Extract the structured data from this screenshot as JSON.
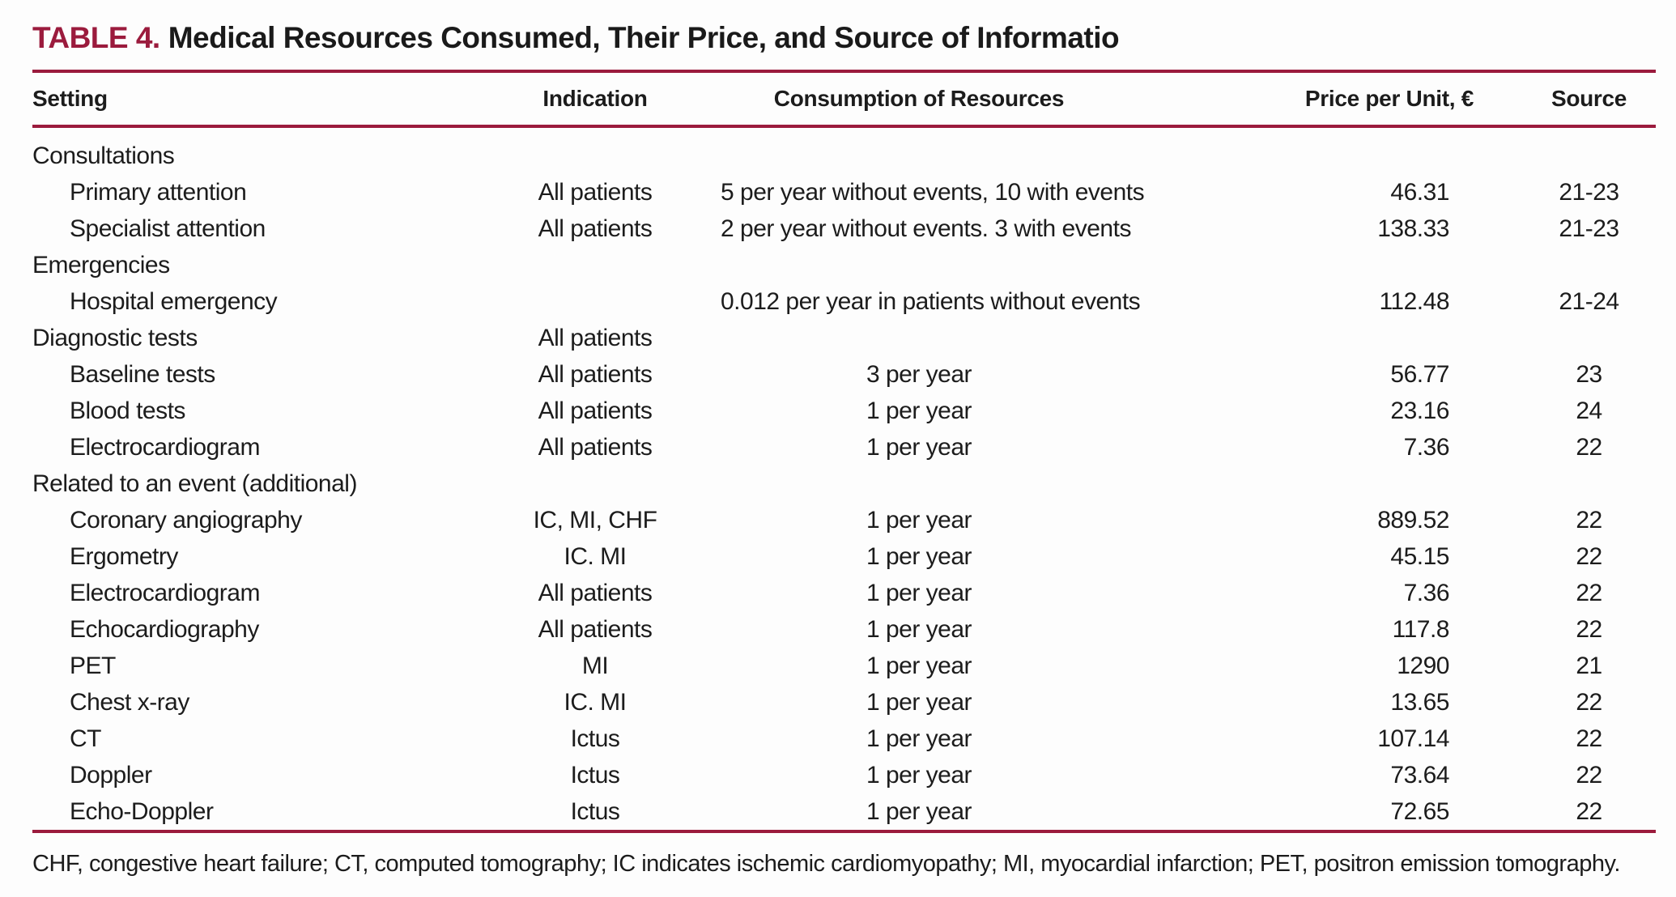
{
  "colors": {
    "accent": "#9b1b3d"
  },
  "title": {
    "label": "TABLE 4.",
    "text": "Medical Resources Consumed, Their Price, and Source of Informatio"
  },
  "table": {
    "columns": [
      "Setting",
      "Indication",
      "Consumption of Resources",
      "Price per Unit, €",
      "Source"
    ],
    "rows": [
      {
        "setting": "Consultations",
        "indent": false,
        "indication": "",
        "consumption": "",
        "price": "",
        "source": ""
      },
      {
        "setting": "Primary attention",
        "indent": true,
        "indication": "All patients",
        "consumption": "5 per year without events, 10 with events",
        "price": "46.31",
        "source": "21-23"
      },
      {
        "setting": "Specialist attention",
        "indent": true,
        "indication": "All patients",
        "consumption": "2 per year without events. 3 with events",
        "price": "138.33",
        "source": "21-23"
      },
      {
        "setting": "Emergencies",
        "indent": false,
        "indication": "",
        "consumption": "",
        "price": "",
        "source": ""
      },
      {
        "setting": "Hospital emergency",
        "indent": true,
        "indication": "",
        "consumption": "0.012 per year in patients without events",
        "price": "112.48",
        "source": "21-24"
      },
      {
        "setting": "Diagnostic tests",
        "indent": false,
        "indication": "All patients",
        "consumption": "",
        "price": "",
        "source": ""
      },
      {
        "setting": "Baseline tests",
        "indent": true,
        "indication": "All patients",
        "consumption": "3 per year",
        "price": "56.77",
        "source": "23"
      },
      {
        "setting": "Blood tests",
        "indent": true,
        "indication": "All patients",
        "consumption": "1 per year",
        "price": "23.16",
        "source": "24"
      },
      {
        "setting": "Electrocardiogram",
        "indent": true,
        "indication": "All patients",
        "consumption": "1 per year",
        "price": "7.36",
        "source": "22"
      },
      {
        "setting": "Related to an event (additional)",
        "indent": false,
        "indication": "",
        "consumption": "",
        "price": "",
        "source": ""
      },
      {
        "setting": "Coronary angiography",
        "indent": true,
        "indication": "IC, MI, CHF",
        "consumption": "1 per year",
        "price": "889.52",
        "source": "22"
      },
      {
        "setting": "Ergometry",
        "indent": true,
        "indication": "IC. MI",
        "consumption": "1 per year",
        "price": "45.15",
        "source": "22"
      },
      {
        "setting": "Electrocardiogram",
        "indent": true,
        "indication": "All patients",
        "consumption": "1 per year",
        "price": "7.36",
        "source": "22"
      },
      {
        "setting": "Echocardiography",
        "indent": true,
        "indication": "All patients",
        "consumption": "1 per year",
        "price": "117.8",
        "source": "22"
      },
      {
        "setting": "PET",
        "indent": true,
        "indication": "MI",
        "consumption": "1 per year",
        "price": "1290",
        "source": "21"
      },
      {
        "setting": "Chest x-ray",
        "indent": true,
        "indication": "IC. MI",
        "consumption": "1 per year",
        "price": "13.65",
        "source": "22"
      },
      {
        "setting": "CT",
        "indent": true,
        "indication": "Ictus",
        "consumption": "1 per year",
        "price": "107.14",
        "source": "22"
      },
      {
        "setting": "Doppler",
        "indent": true,
        "indication": "Ictus",
        "consumption": "1 per year",
        "price": "73.64",
        "source": "22"
      },
      {
        "setting": "Echo-Doppler",
        "indent": true,
        "indication": "Ictus",
        "consumption": "1 per year",
        "price": "72.65",
        "source": "22"
      }
    ]
  },
  "footnote": "CHF, congestive heart failure; CT, computed tomography; IC indicates ischemic cardiomyopathy; MI, myocardial infarction; PET, positron emission tomography."
}
